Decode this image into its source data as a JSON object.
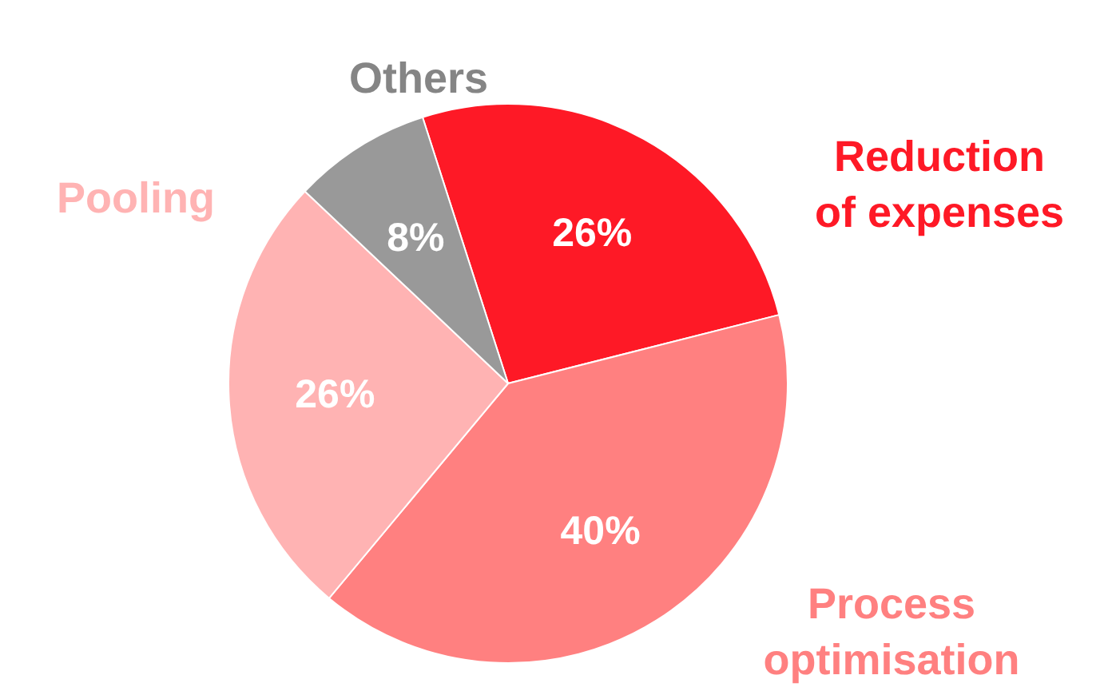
{
  "chart_data": {
    "type": "pie",
    "categories": [
      "Reduction of expenses",
      "Process optimisation",
      "Pooling",
      "Others"
    ],
    "values": [
      26,
      40,
      26,
      8
    ],
    "colors": [
      "#fe1926",
      "#ff8080",
      "#ffb3b3",
      "#999999"
    ],
    "value_labels": [
      "26%",
      "40%",
      "26%",
      "8%"
    ]
  }
}
